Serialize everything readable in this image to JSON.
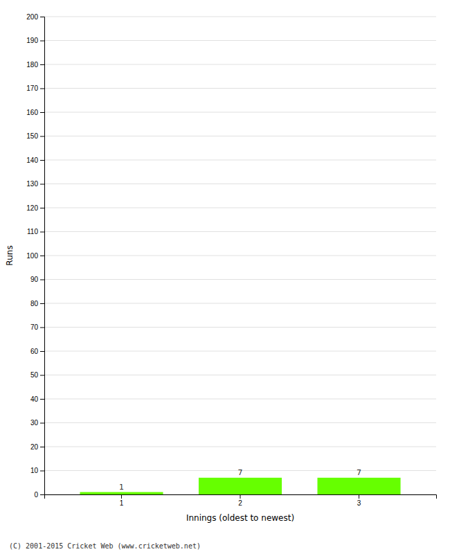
{
  "chart_data": {
    "type": "bar",
    "categories": [
      1,
      2,
      3
    ],
    "values": [
      1,
      7,
      7
    ],
    "color": "#66ff00",
    "xlabel": "Innings (oldest to newest)",
    "ylabel": "Runs",
    "ylim": [
      0,
      200
    ],
    "yticks": [
      0,
      10,
      20,
      30,
      40,
      50,
      60,
      70,
      80,
      90,
      100,
      110,
      120,
      130,
      140,
      150,
      160,
      170,
      180,
      190,
      200
    ],
    "grid": true,
    "data_labels": true,
    "annotations": [
      "(C) 2001-2015 Cricket Web (www.cricketweb.net)"
    ]
  }
}
